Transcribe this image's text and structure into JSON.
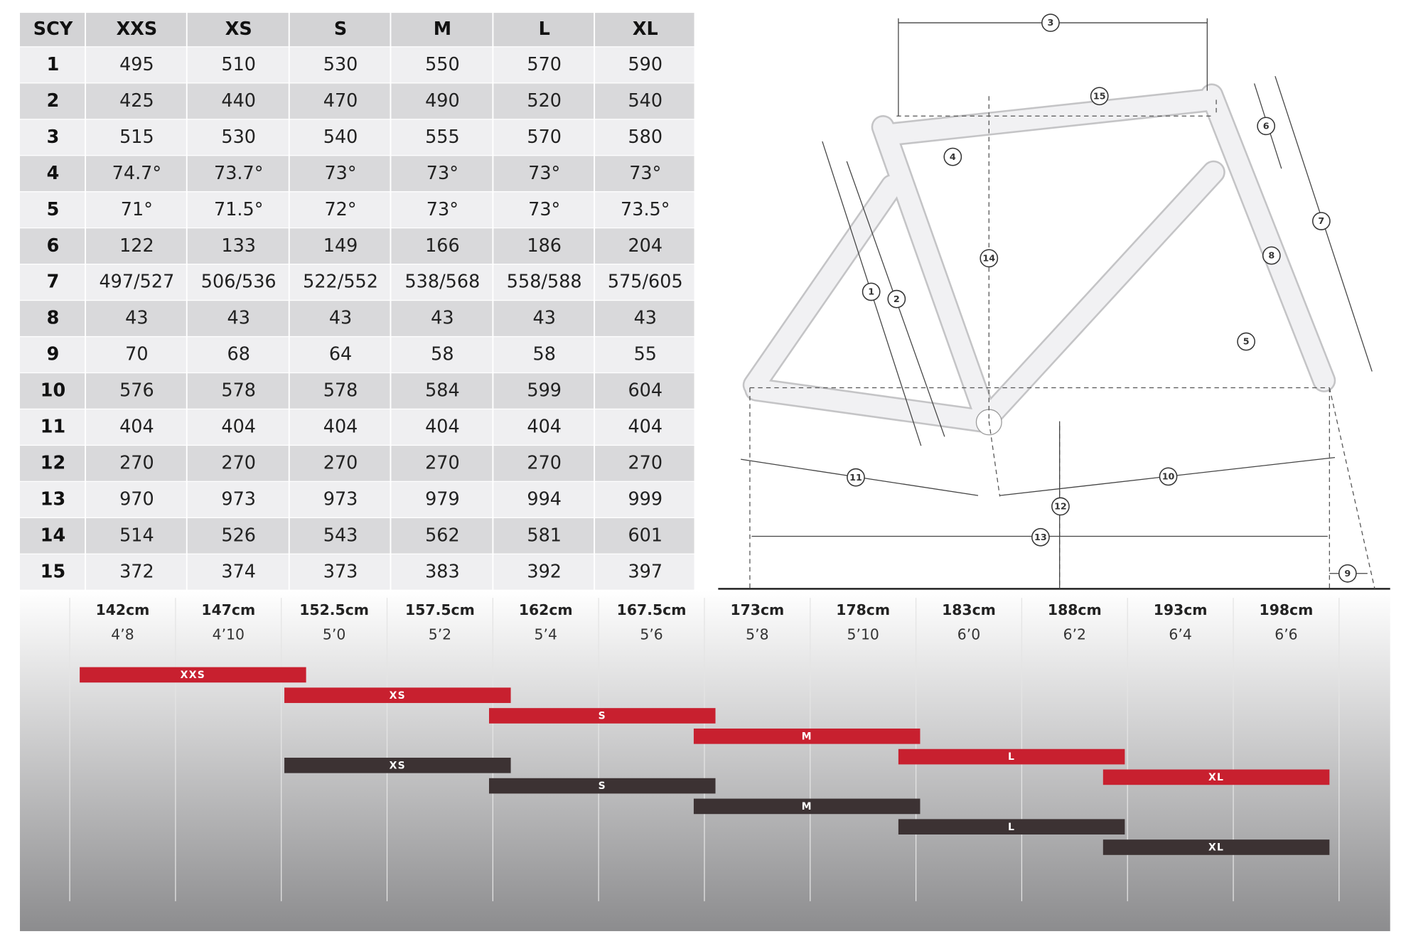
{
  "table": {
    "header": [
      "SCY",
      "XXS",
      "XS",
      "S",
      "M",
      "L",
      "XL"
    ],
    "rows": [
      [
        "1",
        "495",
        "510",
        "530",
        "550",
        "570",
        "590"
      ],
      [
        "2",
        "425",
        "440",
        "470",
        "490",
        "520",
        "540"
      ],
      [
        "3",
        "515",
        "530",
        "540",
        "555",
        "570",
        "580"
      ],
      [
        "4",
        "74.7°",
        "73.7°",
        "73°",
        "73°",
        "73°",
        "73°"
      ],
      [
        "5",
        "71°",
        "71.5°",
        "72°",
        "73°",
        "73°",
        "73.5°"
      ],
      [
        "6",
        "122",
        "133",
        "149",
        "166",
        "186",
        "204"
      ],
      [
        "7",
        "497/527",
        "506/536",
        "522/552",
        "538/568",
        "558/588",
        "575/605"
      ],
      [
        "8",
        "43",
        "43",
        "43",
        "43",
        "43",
        "43"
      ],
      [
        "9",
        "70",
        "68",
        "64",
        "58",
        "58",
        "55"
      ],
      [
        "10",
        "576",
        "578",
        "578",
        "584",
        "599",
        "604"
      ],
      [
        "11",
        "404",
        "404",
        "404",
        "404",
        "404",
        "404"
      ],
      [
        "12",
        "270",
        "270",
        "270",
        "270",
        "270",
        "270"
      ],
      [
        "13",
        "970",
        "973",
        "973",
        "979",
        "994",
        "999"
      ],
      [
        "14",
        "514",
        "526",
        "543",
        "562",
        "581",
        "601"
      ],
      [
        "15",
        "372",
        "374",
        "373",
        "383",
        "392",
        "397"
      ]
    ]
  },
  "diagram": {
    "callouts": [
      "1",
      "2",
      "3",
      "4",
      "5",
      "6",
      "7",
      "8",
      "9",
      "10",
      "11",
      "12",
      "13",
      "14",
      "15"
    ]
  },
  "sizing": {
    "heights": [
      {
        "cm": "142cm",
        "ft": "4’8"
      },
      {
        "cm": "147cm",
        "ft": "4’10"
      },
      {
        "cm": "152.5cm",
        "ft": "5’0"
      },
      {
        "cm": "157.5cm",
        "ft": "5’2"
      },
      {
        "cm": "162cm",
        "ft": "5’4"
      },
      {
        "cm": "167.5cm",
        "ft": "5’6"
      },
      {
        "cm": "173cm",
        "ft": "5’8"
      },
      {
        "cm": "178cm",
        "ft": "5’10"
      },
      {
        "cm": "183cm",
        "ft": "6’0"
      },
      {
        "cm": "188cm",
        "ft": "6’2"
      },
      {
        "cm": "193cm",
        "ft": "6’4"
      },
      {
        "cm": "198cm",
        "ft": "6’6"
      }
    ],
    "bars": [
      "XXS",
      "XS",
      "S",
      "M",
      "L",
      "XL"
    ],
    "bars_alt": [
      "XS",
      "S",
      "M",
      "L",
      "XL"
    ]
  }
}
